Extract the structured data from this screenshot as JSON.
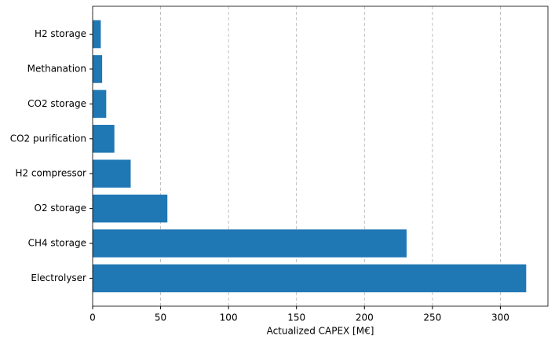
{
  "chart_data": {
    "type": "barh",
    "xlabel": "Actualized CAPEX [M€]",
    "categories": [
      "Electrolyser",
      "CH4 storage",
      "O2 storage",
      "H2 compressor",
      "CO2 purification",
      "CO2 storage",
      "Methanation",
      "H2 storage"
    ],
    "values": [
      319,
      231,
      55,
      28,
      16,
      10,
      7,
      6
    ],
    "color": "#1f77b4",
    "xlim": [
      0,
      335
    ],
    "xticks": [
      0,
      50,
      100,
      150,
      200,
      250,
      300
    ],
    "grid": true
  }
}
